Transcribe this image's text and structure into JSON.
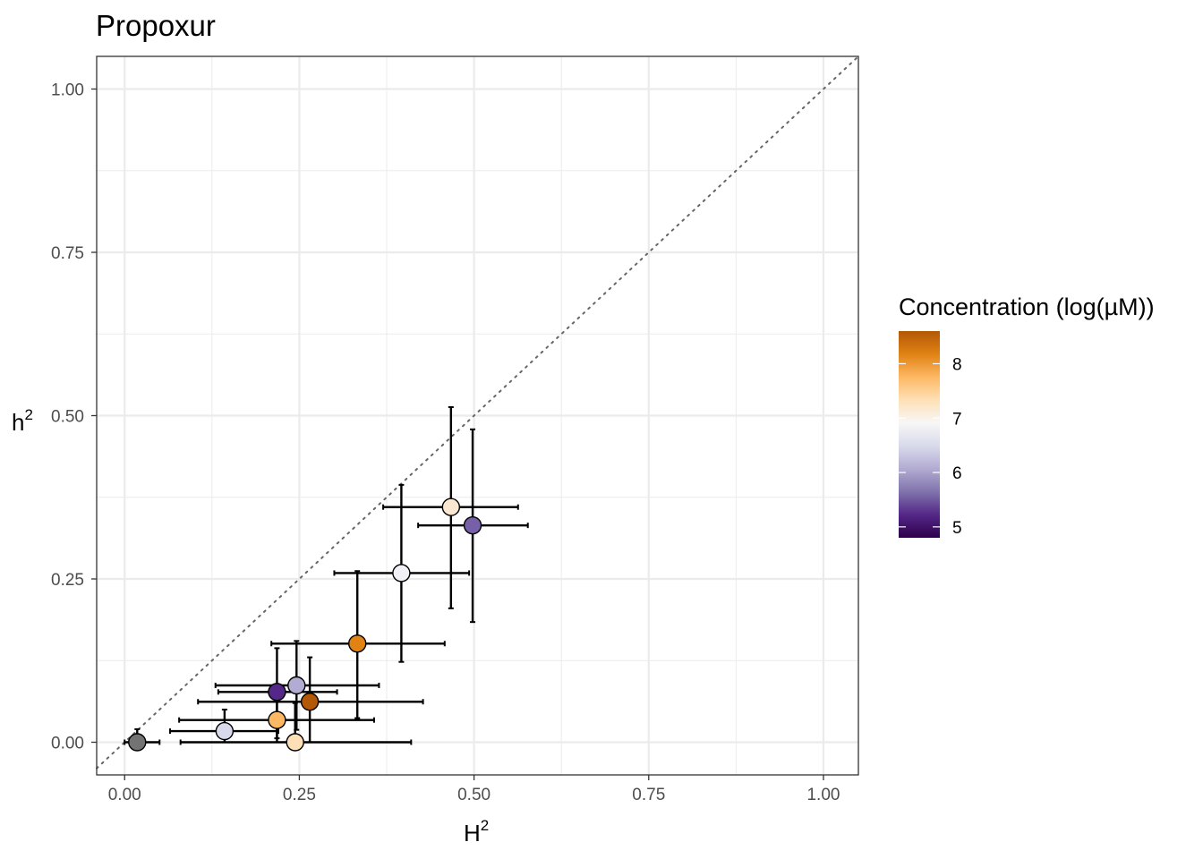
{
  "chart_data": {
    "type": "scatter",
    "title": "Propoxur",
    "xlabel": {
      "base": "H",
      "sup": "2"
    },
    "ylabel": {
      "base": "h",
      "sup": "2"
    },
    "xlim": [
      -0.04,
      1.05
    ],
    "ylim": [
      -0.05,
      1.05
    ],
    "x_ticks": [
      {
        "value": 0.0,
        "label": "0.00"
      },
      {
        "value": 0.25,
        "label": "0.25"
      },
      {
        "value": 0.5,
        "label": "0.50"
      },
      {
        "value": 0.75,
        "label": "0.75"
      },
      {
        "value": 1.0,
        "label": "1.00"
      }
    ],
    "y_ticks": [
      {
        "value": 0.0,
        "label": "0.00"
      },
      {
        "value": 0.25,
        "label": "0.25"
      },
      {
        "value": 0.5,
        "label": "0.50"
      },
      {
        "value": 0.75,
        "label": "0.75"
      },
      {
        "value": 1.0,
        "label": "1.00"
      }
    ],
    "reference_line": {
      "type": "identity",
      "style": "dotted",
      "color": "#666666"
    },
    "grid": true,
    "points": [
      {
        "x": 0.018,
        "y": 0.0,
        "xmin": 0.0,
        "xmax": 0.05,
        "ymin": 0.0,
        "ymax": 0.02,
        "conc": null,
        "color": "#737373"
      },
      {
        "x": 0.143,
        "y": 0.017,
        "xmin": 0.065,
        "xmax": 0.22,
        "ymin": 0.0,
        "ymax": 0.05,
        "conc": 6.1,
        "color": "#d8daeb"
      },
      {
        "x": 0.218,
        "y": 0.034,
        "xmin": 0.078,
        "xmax": 0.357,
        "ymin": 0.0,
        "ymax": 0.07,
        "conc": 7.7,
        "color": "#fdb863"
      },
      {
        "x": 0.218,
        "y": 0.077,
        "xmin": 0.134,
        "xmax": 0.304,
        "ymin": 0.006,
        "ymax": 0.144,
        "conc": 4.9,
        "color": "#542788"
      },
      {
        "x": 0.246,
        "y": 0.087,
        "xmin": 0.13,
        "xmax": 0.364,
        "ymin": 0.019,
        "ymax": 0.155,
        "conc": 5.7,
        "color": "#b2abd2"
      },
      {
        "x": 0.244,
        "y": 0.0,
        "xmin": 0.08,
        "xmax": 0.41,
        "ymin": 0.0,
        "ymax": 0.06,
        "conc": 7.3,
        "color": "#fee0b6"
      },
      {
        "x": 0.265,
        "y": 0.062,
        "xmin": 0.105,
        "xmax": 0.427,
        "ymin": 0.0,
        "ymax": 0.13,
        "conc": 8.5,
        "color": "#b35806"
      },
      {
        "x": 0.333,
        "y": 0.151,
        "xmin": 0.21,
        "xmax": 0.458,
        "ymin": 0.037,
        "ymax": 0.262,
        "conc": 8.1,
        "color": "#e08214"
      },
      {
        "x": 0.396,
        "y": 0.259,
        "xmin": 0.3,
        "xmax": 0.493,
        "ymin": 0.123,
        "ymax": 0.394,
        "conc": 6.8,
        "color": "#f0f0f5"
      },
      {
        "x": 0.467,
        "y": 0.36,
        "xmin": 0.37,
        "xmax": 0.563,
        "ymin": 0.205,
        "ymax": 0.513,
        "conc": 7.1,
        "color": "#fbe8d2"
      },
      {
        "x": 0.498,
        "y": 0.332,
        "xmin": 0.42,
        "xmax": 0.577,
        "ymin": 0.184,
        "ymax": 0.479,
        "conc": 5.3,
        "color": "#7661a9"
      }
    ],
    "legend": {
      "title": "Concentration (log(µM))",
      "position": "right",
      "type": "colorbar",
      "range": [
        4.8,
        8.6
      ],
      "ticks": [
        {
          "value": 5,
          "label": "5"
        },
        {
          "value": 6,
          "label": "6"
        },
        {
          "value": 7,
          "label": "7"
        },
        {
          "value": 8,
          "label": "8"
        }
      ],
      "gradient": [
        "#2d004b",
        "#542788",
        "#8073ac",
        "#b2abd2",
        "#d8daeb",
        "#f7f7f7",
        "#fee0b6",
        "#fdb863",
        "#e08214",
        "#b35806"
      ]
    }
  }
}
